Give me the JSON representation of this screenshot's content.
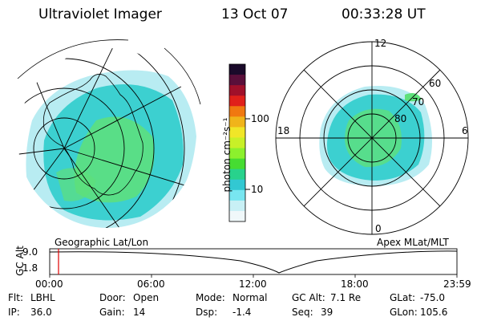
{
  "header": {
    "title": "Ultraviolet Imager",
    "date": "13 Oct 07",
    "time": "00:33:28 UT"
  },
  "geo_map": {
    "label": "Geographic Lat/Lon"
  },
  "apex_map": {
    "label": "Apex MLat/MLT",
    "mlt_labels": [
      "12",
      "18",
      "6",
      "0"
    ],
    "lat_labels": [
      "60",
      "70",
      "80"
    ]
  },
  "colorbar": {
    "unit": "photon cm⁻²s⁻¹",
    "ticks": [
      "100",
      "10"
    ],
    "colors": [
      "#1a0a2a",
      "#5a0f3a",
      "#a0102a",
      "#e0201a",
      "#f07810",
      "#f0b41a",
      "#f0e628",
      "#c8f028",
      "#8cf02d",
      "#46dc32",
      "#28d28c",
      "#32c8d2",
      "#78e6f0",
      "#c8f0f5",
      "#f0f8fa"
    ]
  },
  "timeline": {
    "ylabel": "GC Alt",
    "yticks": [
      "9.0",
      "1.8"
    ],
    "xticks": [
      "00:00",
      "06:00",
      "12:00",
      "18:00",
      "23:59"
    ],
    "current_time": "00:33"
  },
  "info": {
    "flt_label": "Flt:",
    "flt_value": "LBHL",
    "ip_label": "IP:",
    "ip_value": "36.0",
    "door_label": "Door:",
    "door_value": "Open",
    "gain_label": "Gain:",
    "gain_value": "14",
    "mode_label": "Mode:",
    "mode_value": "Normal",
    "dsp_label": "Dsp:",
    "dsp_value": "-1.4",
    "gcalt_label": "GC Alt:",
    "gcalt_value": "7.1 Re",
    "seq_label": "Seq:",
    "seq_value": "39",
    "glat_label": "GLat:",
    "glat_value": "-75.0",
    "glon_label": "GLon:",
    "glon_value": "105.6"
  }
}
